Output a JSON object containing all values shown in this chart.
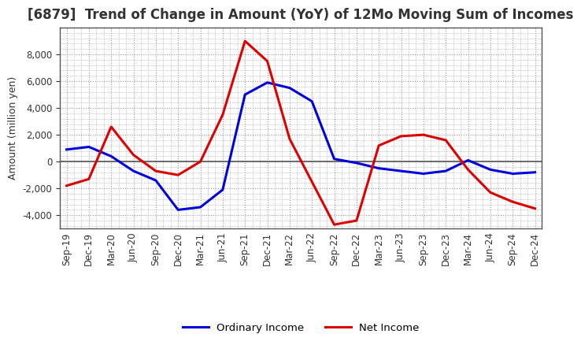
{
  "title": "[6879]  Trend of Change in Amount (YoY) of 12Mo Moving Sum of Incomes",
  "ylabel": "Amount (million yen)",
  "x_labels": [
    "Sep-19",
    "Dec-19",
    "Mar-20",
    "Jun-20",
    "Sep-20",
    "Dec-20",
    "Mar-21",
    "Jun-21",
    "Sep-21",
    "Dec-21",
    "Mar-22",
    "Jun-22",
    "Sep-22",
    "Dec-22",
    "Mar-23",
    "Jun-23",
    "Sep-23",
    "Dec-23",
    "Mar-24",
    "Jun-24",
    "Sep-24",
    "Dec-24"
  ],
  "ordinary_income": [
    900,
    1100,
    400,
    -700,
    -1400,
    -3600,
    -3400,
    -2100,
    5000,
    5900,
    5500,
    4500,
    200,
    -100,
    -500,
    -700,
    -900,
    -700,
    100,
    -600,
    -900,
    -800
  ],
  "net_income": [
    -1800,
    -1300,
    2600,
    500,
    -700,
    -1000,
    0,
    3500,
    9000,
    7500,
    1700,
    -1500,
    -4700,
    -4400,
    1200,
    1900,
    2000,
    1600,
    -600,
    -2300,
    -3000,
    -3500
  ],
  "ordinary_color": "#0000dd",
  "net_color": "#dd0000",
  "ylim": [
    -5000,
    10000
  ],
  "yticks": [
    -4000,
    -2000,
    0,
    2000,
    4000,
    6000,
    8000
  ],
  "background_color": "#ffffff",
  "grid_color": "#999999",
  "zero_line_color": "#555555",
  "line_width": 2.2,
  "legend_ordinary": "Ordinary Income",
  "legend_net": "Net Income",
  "title_fontsize": 12,
  "axis_fontsize": 9,
  "tick_fontsize": 8.5,
  "title_color": "#333333"
}
